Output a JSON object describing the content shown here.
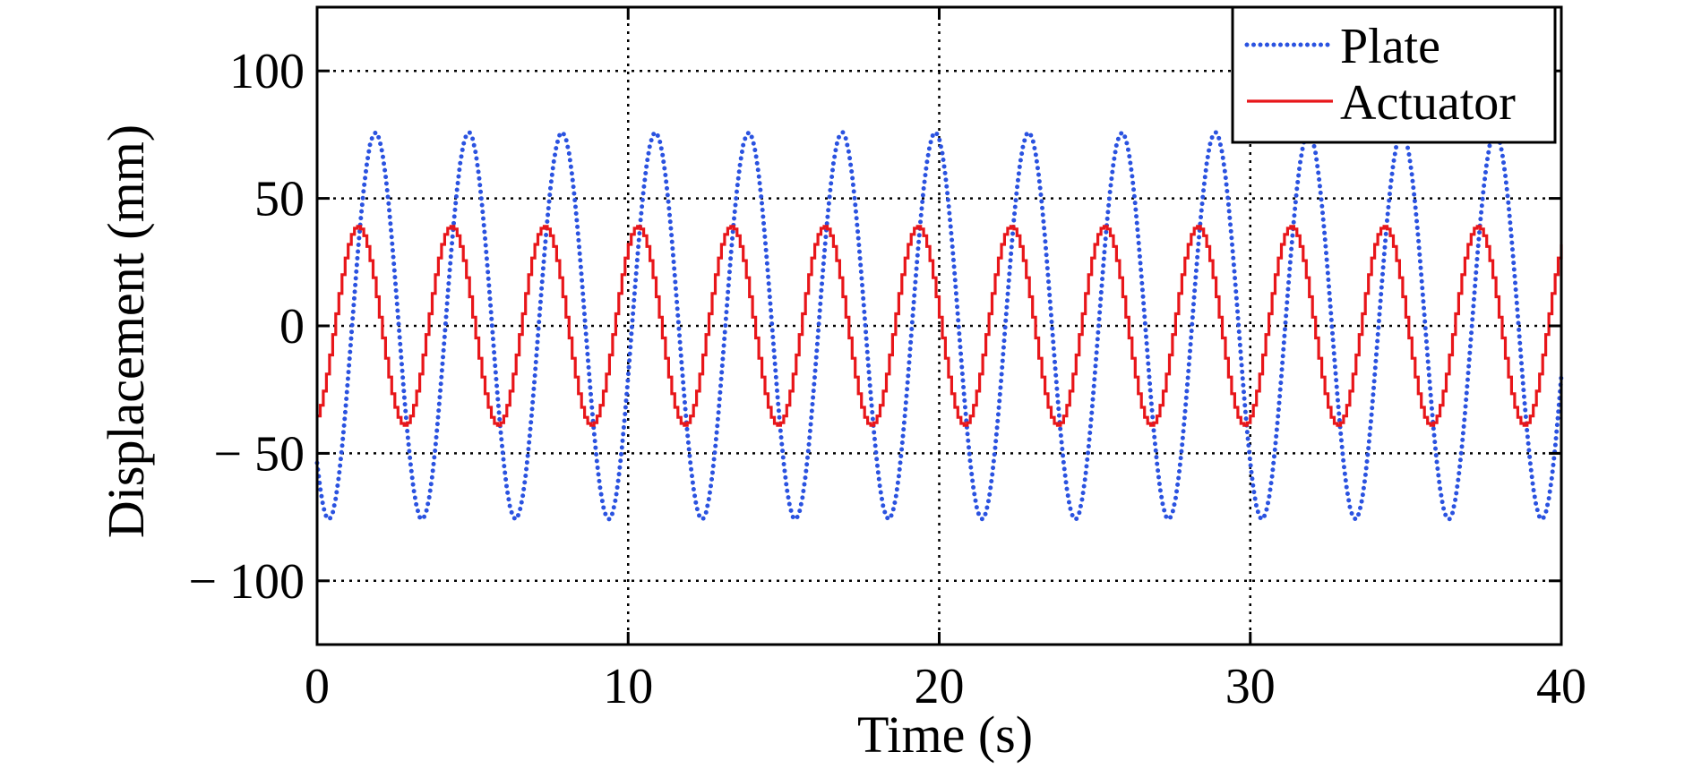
{
  "chart_data": {
    "type": "line",
    "title": "",
    "xlabel": "Time (s)",
    "ylabel": "Displacement (mm)",
    "xlim": [
      0,
      40
    ],
    "ylim": [
      -125,
      125
    ],
    "x_ticks": [
      0,
      10,
      20,
      30,
      40
    ],
    "x_tick_labels": [
      "0",
      "10",
      "20",
      "30",
      "40"
    ],
    "y_ticks": [
      100,
      50,
      0,
      -50,
      -100
    ],
    "y_tick_labels": [
      "100",
      "50",
      "0",
      "− 50",
      "− 100"
    ],
    "grid": true,
    "legend_position": "top-right",
    "series": [
      {
        "name": "Plate",
        "color": "#2a52e0",
        "style": "dotted",
        "period": 3.0,
        "amplitude": 76,
        "phase_deg": 225,
        "samples_per_second": 10,
        "start_value": -54
      },
      {
        "name": "Actuator",
        "color": "#e8161a",
        "style": "solid-stepped",
        "period": 3.0,
        "amplitude": 39,
        "phase_deg": 295,
        "samples_per_second": 10,
        "start_value": -35
      }
    ]
  }
}
